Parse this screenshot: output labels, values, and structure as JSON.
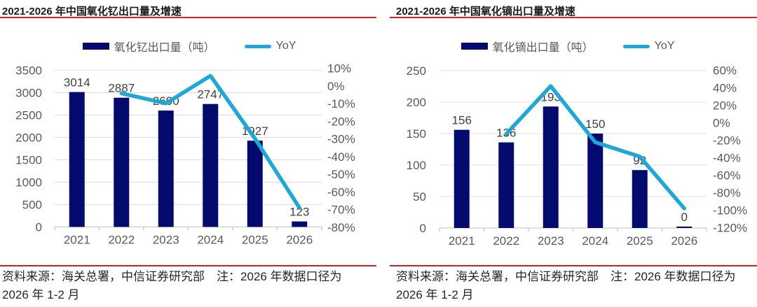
{
  "colors": {
    "bar": "#050a6e",
    "line": "#1fa8d6",
    "rule": "#cc2222",
    "grid": "#e0e0e0",
    "axis_line": "#c9c9c9",
    "axis_text": "#595959",
    "value_label": "#404040",
    "title_text": "#1a1a1a",
    "footer_text": "#262626"
  },
  "panels": [
    {
      "title": "2021-2026 年中国氧化钇出口量及增速",
      "legend_bar_label": "氧化钇出口量（吨）",
      "legend_line_label": "YoY",
      "footer_line1": "资料来源：海关总署，中信证券研究部　注：2026 年数据口径为",
      "footer_line2": "2026 年 1-2 月"
    },
    {
      "title": "2021-2026 年中国氧化镝出口量及增速",
      "legend_bar_label": "氧化镝出口量（吨）",
      "legend_line_label": "YoY",
      "footer_line1": "资料来源：海关总署，中信证券研究部　注：2026 年数据口径为",
      "footer_line2": "2026 年 1-2 月"
    }
  ],
  "chart_data": [
    {
      "type": "bar+line",
      "title": "2021-2026 年中国氧化钇出口量及增速",
      "categories": [
        "2021",
        "2022",
        "2023",
        "2024",
        "2025",
        "2026"
      ],
      "series": [
        {
          "name": "氧化钇出口量（吨）",
          "type": "bar",
          "axis": "left",
          "values": [
            3014,
            2887,
            2600,
            2747,
            1927,
            123
          ],
          "data_labels": [
            "3014",
            "2887",
            "2600",
            "2747",
            "1927",
            "123"
          ]
        },
        {
          "name": "YoY",
          "type": "line",
          "axis": "right",
          "values": [
            null,
            -4.2,
            -9.9,
            5.7,
            -29.8,
            -69
          ]
        }
      ],
      "left_axis": {
        "min": 0,
        "max": 3500,
        "step": 500
      },
      "right_axis": {
        "min": -80,
        "max": 10,
        "step": 10,
        "format": "percent"
      },
      "grid": true,
      "legend_position": "top"
    },
    {
      "type": "bar+line",
      "title": "2021-2026 年中国氧化镝出口量及增速",
      "categories": [
        "2021",
        "2022",
        "2023",
        "2024",
        "2025",
        "2026"
      ],
      "series": [
        {
          "name": "氧化镝出口量（吨）",
          "type": "bar",
          "axis": "left",
          "values": [
            156,
            136,
            193,
            150,
            92,
            0
          ],
          "data_labels": [
            "156",
            "136",
            "193",
            "150",
            "92",
            "0"
          ]
        },
        {
          "name": "YoY",
          "type": "line",
          "axis": "right",
          "values": [
            null,
            -12.8,
            41.9,
            -22.3,
            -38.7,
            -98
          ]
        }
      ],
      "left_axis": {
        "min": 0,
        "max": 250,
        "step": 50
      },
      "right_axis": {
        "min": -120,
        "max": 60,
        "step": 20,
        "format": "percent"
      },
      "grid": true,
      "legend_position": "top"
    }
  ]
}
